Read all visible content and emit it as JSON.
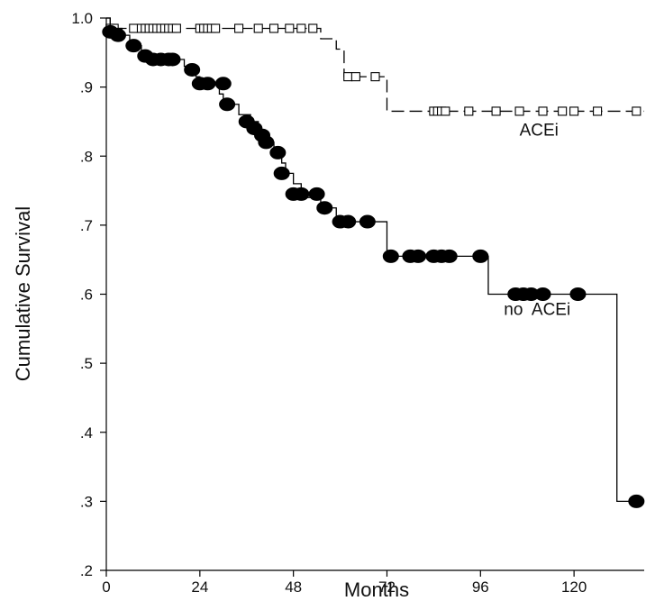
{
  "chart_data": {
    "type": "line",
    "title": "",
    "xlabel": "Months",
    "ylabel": "Cumulative  Survival",
    "xlim": [
      0,
      138
    ],
    "ylim": [
      0.2,
      1.0
    ],
    "x_ticks": [
      0,
      24,
      48,
      72,
      96,
      120
    ],
    "x_tick_labels": [
      "0",
      "24",
      "48",
      "72",
      "96",
      "120"
    ],
    "y_ticks": [
      0.2,
      0.3,
      0.4,
      0.5,
      0.6,
      0.7,
      0.8,
      0.9,
      1.0
    ],
    "y_tick_labels": [
      ".2",
      ".3",
      ".4",
      ".5",
      ".6",
      ".7",
      ".8",
      ".9",
      "1.0"
    ],
    "grid": false,
    "series": [
      {
        "name": "ACEi",
        "line_style": "dashed",
        "marker": "open-square",
        "color": "#000000",
        "steps": [
          [
            0,
            1.0
          ],
          [
            1,
            0.985
          ],
          [
            55,
            0.97
          ],
          [
            59,
            0.955
          ],
          [
            61,
            0.915
          ],
          [
            72,
            0.865
          ],
          [
            138,
            0.865
          ]
        ],
        "censored": [
          [
            1,
            0.985
          ],
          [
            2,
            0.985
          ],
          [
            7,
            0.985
          ],
          [
            9,
            0.985
          ],
          [
            10,
            0.985
          ],
          [
            11,
            0.985
          ],
          [
            12,
            0.985
          ],
          [
            13,
            0.985
          ],
          [
            14,
            0.985
          ],
          [
            15,
            0.985
          ],
          [
            16,
            0.985
          ],
          [
            17,
            0.985
          ],
          [
            18,
            0.985
          ],
          [
            24,
            0.985
          ],
          [
            25,
            0.985
          ],
          [
            26,
            0.985
          ],
          [
            27,
            0.985
          ],
          [
            28,
            0.985
          ],
          [
            34,
            0.985
          ],
          [
            39,
            0.985
          ],
          [
            43,
            0.985
          ],
          [
            47,
            0.985
          ],
          [
            50,
            0.985
          ],
          [
            53,
            0.985
          ],
          [
            62,
            0.915
          ],
          [
            64,
            0.915
          ],
          [
            69,
            0.915
          ],
          [
            84,
            0.865
          ],
          [
            85,
            0.865
          ],
          [
            86,
            0.865
          ],
          [
            87,
            0.865
          ],
          [
            93,
            0.865
          ],
          [
            100,
            0.865
          ],
          [
            106,
            0.865
          ],
          [
            112,
            0.865
          ],
          [
            117,
            0.865
          ],
          [
            120,
            0.865
          ],
          [
            126,
            0.865
          ],
          [
            136,
            0.865
          ]
        ]
      },
      {
        "name": "no  ACEi",
        "line_style": "solid",
        "marker": "filled-circle",
        "color": "#000000",
        "steps": [
          [
            0,
            1.0
          ],
          [
            1,
            0.985
          ],
          [
            4,
            0.975
          ],
          [
            6,
            0.96
          ],
          [
            9,
            0.95
          ],
          [
            11,
            0.94
          ],
          [
            20,
            0.93
          ],
          [
            23,
            0.915
          ],
          [
            24,
            0.905
          ],
          [
            29,
            0.89
          ],
          [
            30,
            0.875
          ],
          [
            34,
            0.86
          ],
          [
            37,
            0.85
          ],
          [
            39,
            0.835
          ],
          [
            41,
            0.82
          ],
          [
            43,
            0.805
          ],
          [
            45,
            0.79
          ],
          [
            46,
            0.775
          ],
          [
            48,
            0.76
          ],
          [
            50,
            0.74
          ],
          [
            55,
            0.725
          ],
          [
            59,
            0.705
          ],
          [
            72,
            0.655
          ],
          [
            98,
            0.6
          ],
          [
            131,
            0.3
          ],
          [
            138,
            0.3
          ]
        ],
        "censored": [
          [
            1,
            0.98
          ],
          [
            3,
            0.975
          ],
          [
            7,
            0.96
          ],
          [
            10,
            0.945
          ],
          [
            12,
            0.94
          ],
          [
            14,
            0.94
          ],
          [
            16,
            0.94
          ],
          [
            17,
            0.94
          ],
          [
            22,
            0.925
          ],
          [
            24,
            0.905
          ],
          [
            26,
            0.905
          ],
          [
            30,
            0.905
          ],
          [
            31,
            0.875
          ],
          [
            36,
            0.85
          ],
          [
            38,
            0.84
          ],
          [
            40,
            0.83
          ],
          [
            41,
            0.82
          ],
          [
            44,
            0.805
          ],
          [
            45,
            0.775
          ],
          [
            48,
            0.745
          ],
          [
            50,
            0.745
          ],
          [
            54,
            0.745
          ],
          [
            56,
            0.725
          ],
          [
            60,
            0.705
          ],
          [
            62,
            0.705
          ],
          [
            67,
            0.705
          ],
          [
            73,
            0.655
          ],
          [
            78,
            0.655
          ],
          [
            80,
            0.655
          ],
          [
            84,
            0.655
          ],
          [
            86,
            0.655
          ],
          [
            88,
            0.655
          ],
          [
            96,
            0.655
          ],
          [
            105,
            0.6
          ],
          [
            107,
            0.6
          ],
          [
            109,
            0.6
          ],
          [
            112,
            0.6
          ],
          [
            121,
            0.6
          ],
          [
            136,
            0.3
          ]
        ]
      }
    ],
    "annotations": [
      {
        "text": "ACEi",
        "x": 106,
        "y": 0.83
      },
      {
        "text": "no  ACEi",
        "x": 102,
        "y": 0.57
      }
    ]
  }
}
